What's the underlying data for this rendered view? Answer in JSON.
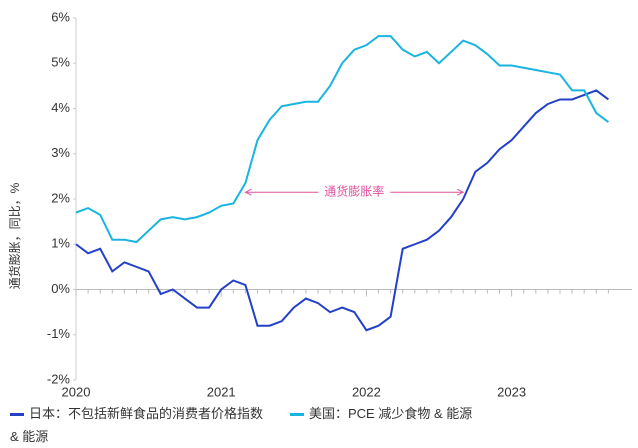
{
  "chart_data": {
    "type": "line",
    "y_label": "通货膨胀，同比，%",
    "annotation": "通货膨胀率",
    "categories": [
      "2020",
      null,
      null,
      null,
      null,
      null,
      null,
      null,
      null,
      null,
      null,
      null,
      "2021",
      null,
      null,
      null,
      null,
      null,
      null,
      null,
      null,
      null,
      null,
      null,
      "2022",
      null,
      null,
      null,
      null,
      null,
      null,
      null,
      null,
      null,
      null,
      null,
      "2023",
      null,
      null,
      null,
      null,
      null,
      null,
      null,
      null
    ],
    "series": [
      {
        "name": "日本：不包括新鲜食品的消费者价格指数 & 能源",
        "color": "#2340c8",
        "values": [
          1.0,
          0.8,
          0.9,
          0.4,
          0.6,
          0.5,
          0.4,
          -0.1,
          0.0,
          -0.2,
          -0.4,
          -0.4,
          0.0,
          0.2,
          0.1,
          -0.8,
          -0.8,
          -0.7,
          -0.4,
          -0.2,
          -0.3,
          -0.5,
          -0.4,
          -0.5,
          -0.9,
          -0.8,
          -0.6,
          0.9,
          1.0,
          1.1,
          1.3,
          1.6,
          2.0,
          2.6,
          2.8,
          3.1,
          3.3,
          3.6,
          3.9,
          4.1,
          4.2,
          4.2,
          4.3,
          4.4,
          4.2
        ]
      },
      {
        "name": "美国：PCE 减少食物 & 能源",
        "color": "#1ab4e0",
        "values": [
          1.7,
          1.8,
          1.65,
          1.1,
          1.1,
          1.05,
          1.3,
          1.55,
          1.6,
          1.55,
          1.6,
          1.7,
          1.85,
          1.9,
          2.35,
          3.3,
          3.75,
          4.05,
          4.1,
          4.15,
          4.15,
          4.5,
          5.0,
          5.3,
          5.4,
          5.6,
          5.6,
          5.3,
          5.15,
          5.25,
          5.0,
          5.25,
          5.5,
          5.4,
          5.2,
          4.95,
          4.95,
          4.9,
          4.85,
          4.8,
          4.75,
          4.4,
          4.4,
          3.9,
          3.7
        ]
      }
    ],
    "ylim": [
      -2,
      6
    ],
    "yticks": [
      {
        "value": -2,
        "label": "-2%"
      },
      {
        "value": -1,
        "label": "-1%"
      },
      {
        "value": 0,
        "label": "0%"
      },
      {
        "value": 1,
        "label": "1%"
      },
      {
        "value": 2,
        "label": "2%"
      },
      {
        "value": 3,
        "label": "3%"
      },
      {
        "value": 4,
        "label": "4%"
      },
      {
        "value": 5,
        "label": "5%"
      },
      {
        "value": 6,
        "label": "6%"
      }
    ],
    "annotation_y": 2.15,
    "annotation_from": 14,
    "annotation_to": 32
  }
}
